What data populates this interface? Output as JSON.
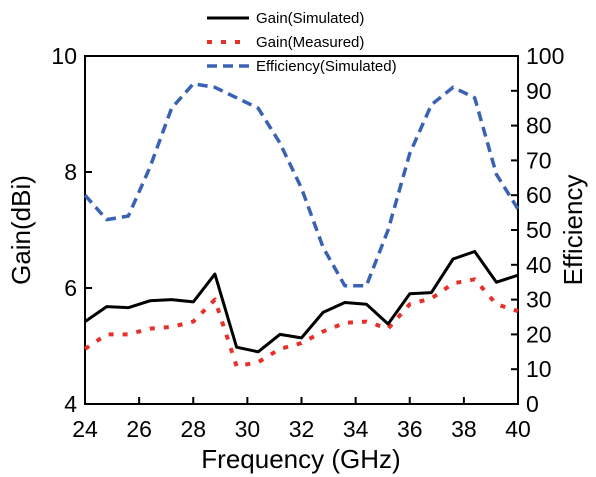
{
  "chart_data": {
    "type": "line",
    "xlabel": "Frequency (GHz)",
    "ylabel_left": "Gain(dBi)",
    "ylabel_right": "Efficiency",
    "xlim": [
      24,
      40
    ],
    "ylim_left": [
      4,
      10
    ],
    "ylim_right": [
      0,
      100
    ],
    "x_ticks": [
      "24",
      "26",
      "28",
      "30",
      "32",
      "34",
      "36",
      "38",
      "40"
    ],
    "y_left_ticks": [
      "4",
      "6",
      "8",
      "10"
    ],
    "y_right_ticks": [
      "0",
      "10",
      "20",
      "30",
      "40",
      "50",
      "60",
      "70",
      "80",
      "90",
      "100"
    ],
    "grid": false,
    "legend_position": "top-center",
    "series": [
      {
        "name": "Gain(Simulated)",
        "axis": "left",
        "color": "#000000",
        "style": "solid",
        "x": [
          24,
          24.8,
          25.6,
          26.4,
          27.2,
          28,
          28.8,
          29.6,
          30.4,
          31.2,
          32,
          32.8,
          33.6,
          34.4,
          35.2,
          36,
          36.8,
          37.6,
          38.4,
          39.2,
          40
        ],
        "y": [
          5.42,
          5.68,
          5.66,
          5.78,
          5.8,
          5.76,
          6.24,
          4.98,
          4.9,
          5.2,
          5.14,
          5.58,
          5.75,
          5.72,
          5.38,
          5.9,
          5.92,
          6.5,
          6.63,
          6.1,
          6.22
        ]
      },
      {
        "name": "Gain(Measured)",
        "axis": "left",
        "color": "#e8302a",
        "style": "dotted",
        "x": [
          24,
          24.8,
          25.6,
          26.4,
          27.2,
          28,
          28.8,
          29.6,
          30.4,
          31.2,
          32,
          32.8,
          33.6,
          34.4,
          35.2,
          36,
          36.8,
          37.6,
          38.4,
          39.2,
          40
        ],
        "y": [
          4.95,
          5.2,
          5.2,
          5.3,
          5.33,
          5.42,
          5.8,
          4.65,
          4.72,
          4.95,
          5.05,
          5.25,
          5.4,
          5.42,
          5.3,
          5.72,
          5.82,
          6.08,
          6.15,
          5.72,
          5.6
        ]
      },
      {
        "name": "Efficiency(Simulated)",
        "axis": "right",
        "color": "#3a62b4",
        "style": "dashed",
        "x": [
          24,
          24.8,
          25.6,
          26.4,
          27.2,
          28,
          28.8,
          29.6,
          30.4,
          31.2,
          32,
          32.8,
          33.6,
          34.4,
          35.2,
          36,
          36.8,
          37.6,
          38.4,
          39.2,
          40
        ],
        "y": [
          60,
          53,
          54,
          68,
          85,
          92,
          91,
          88,
          85,
          75,
          62,
          45,
          34,
          34,
          50,
          72,
          86,
          91,
          88,
          66,
          56
        ]
      }
    ]
  }
}
